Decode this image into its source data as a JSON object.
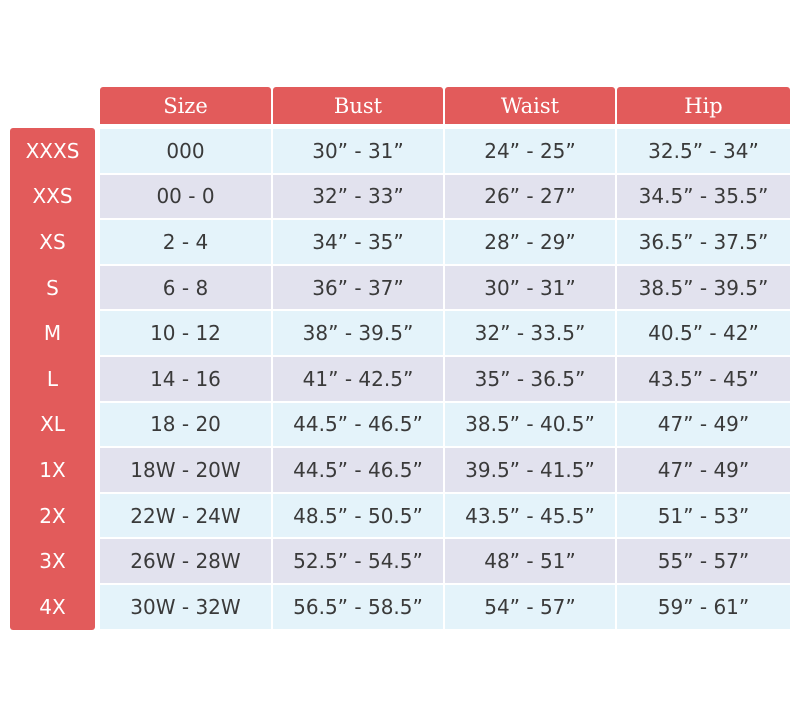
{
  "table": {
    "headers": [
      "Size",
      "Bust",
      "Waist",
      "Hip"
    ],
    "row_labels": [
      "XXXS",
      "XXS",
      "XS",
      "S",
      "M",
      "L",
      "XL",
      "1X",
      "2X",
      "3X",
      "4X"
    ],
    "rows": [
      [
        "000",
        "30” - 31”",
        "24” - 25”",
        "32.5” - 34”"
      ],
      [
        "00 - 0",
        "32” - 33”",
        "26” - 27”",
        "34.5” - 35.5”"
      ],
      [
        "2 - 4",
        "34” - 35”",
        "28” - 29”",
        "36.5” - 37.5”"
      ],
      [
        "6 - 8",
        "36” - 37”",
        "30” - 31”",
        "38.5” - 39.5”"
      ],
      [
        "10 - 12",
        "38” - 39.5”",
        "32” - 33.5”",
        "40.5” - 42”"
      ],
      [
        "14 - 16",
        "41” - 42.5”",
        "35” - 36.5”",
        "43.5” - 45”"
      ],
      [
        "18 - 20",
        "44.5” - 46.5”",
        "38.5” - 40.5”",
        "47” - 49”"
      ],
      [
        "18W - 20W",
        "44.5” - 46.5”",
        "39.5” - 41.5”",
        "47” - 49”"
      ],
      [
        "22W - 24W",
        "48.5” - 50.5”",
        "43.5” - 45.5”",
        "51” - 53”"
      ],
      [
        "26W - 28W",
        "52.5” - 54.5”",
        "48” - 51”",
        "55” - 57”"
      ],
      [
        "30W - 32W",
        "56.5” - 58.5”",
        "54” - 57”",
        "59” - 61”"
      ]
    ]
  }
}
